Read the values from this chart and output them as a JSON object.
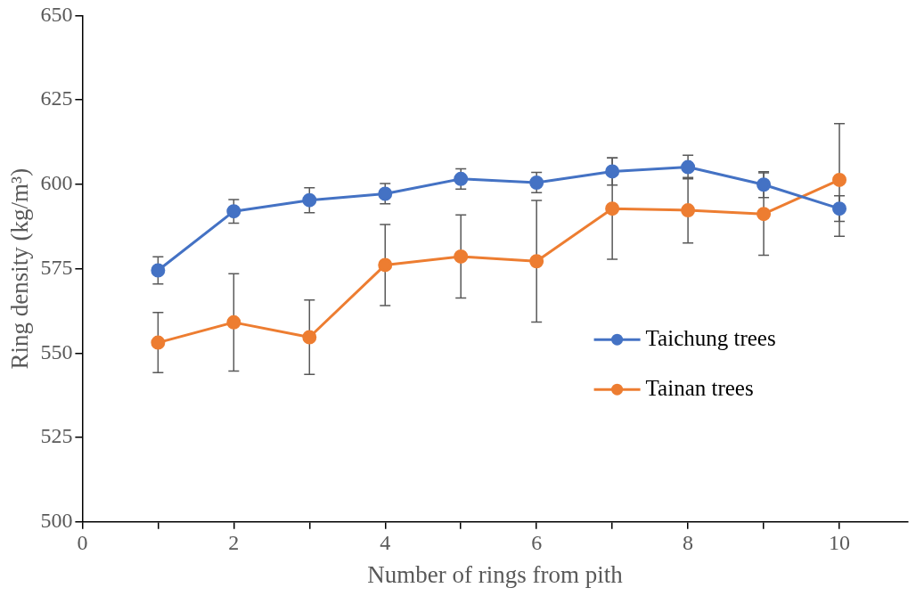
{
  "chart_data": {
    "type": "line",
    "xlabel": "Number of rings from pith",
    "ylabel": "Ring density (kg/m³)",
    "x": [
      1,
      2,
      3,
      4,
      5,
      6,
      7,
      8,
      9,
      10
    ],
    "series": [
      {
        "name": "Taichung trees",
        "color": "#4472c4",
        "values": [
          574.5,
          592,
          595.3,
          597.2,
          601.6,
          600.5,
          603.8,
          605.1,
          599.9,
          592.8
        ],
        "errors": [
          4,
          3.5,
          3.7,
          3,
          3,
          3,
          4,
          3.5,
          3.8,
          3.8
        ]
      },
      {
        "name": "Tainan trees",
        "color": "#ed7d31",
        "values": [
          553.1,
          559.1,
          554.7,
          576.1,
          578.6,
          577.2,
          592.8,
          592.3,
          591.2,
          601.3
        ],
        "errors": [
          8.9,
          14.4,
          11,
          12,
          12.3,
          18,
          15,
          9.7,
          12.2,
          16.7
        ]
      }
    ],
    "xlim": [
      0,
      10.9
    ],
    "xticks": [
      0,
      {
        "value": 1,
        "label": null
      },
      2,
      {
        "value": 3,
        "label": null
      },
      4,
      {
        "value": 5,
        "label": null
      },
      6,
      {
        "value": 7,
        "label": null
      },
      8,
      {
        "value": 9,
        "label": null
      },
      10
    ],
    "ylim": [
      500,
      650
    ],
    "yticks": [
      500,
      525,
      550,
      575,
      600,
      625,
      650
    ],
    "grid": false,
    "legend": "right",
    "marker": "circle",
    "line_style": "solid"
  }
}
